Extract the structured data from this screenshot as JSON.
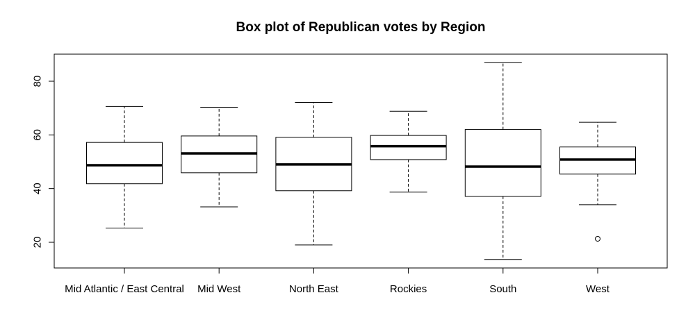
{
  "chart_data": {
    "type": "box",
    "title": "Box plot of Republican votes by Region",
    "xlabel": "",
    "ylabel": "",
    "ylim": [
      10,
      90
    ],
    "yticks": [
      20,
      40,
      60,
      80
    ],
    "grid": false,
    "categories": [
      "Mid Atlantic / East Central",
      "Mid West",
      "North East",
      "Rockies",
      "South",
      "West"
    ],
    "boxes": [
      {
        "category": "Mid Atlantic / East Central",
        "whisker_low": 25.3,
        "q1": 41.8,
        "median": 48.7,
        "q3": 57.2,
        "whisker_high": 70.6,
        "outliers": []
      },
      {
        "category": "Mid West",
        "whisker_low": 33.2,
        "q1": 45.9,
        "median": 53.1,
        "q3": 59.6,
        "whisker_high": 70.3,
        "outliers": []
      },
      {
        "category": "North East",
        "whisker_low": 19.0,
        "q1": 39.2,
        "median": 49.0,
        "q3": 59.1,
        "whisker_high": 72.1,
        "outliers": []
      },
      {
        "category": "Rockies",
        "whisker_low": 38.7,
        "q1": 50.8,
        "median": 55.8,
        "q3": 59.8,
        "whisker_high": 68.8,
        "outliers": []
      },
      {
        "category": "South",
        "whisker_low": 13.6,
        "q1": 37.1,
        "median": 48.2,
        "q3": 62.0,
        "whisker_high": 86.9,
        "outliers": []
      },
      {
        "category": "West",
        "whisker_low": 34.0,
        "q1": 45.4,
        "median": 50.8,
        "q3": 55.5,
        "whisker_high": 64.7,
        "outliers": [
          21.3
        ]
      }
    ]
  }
}
